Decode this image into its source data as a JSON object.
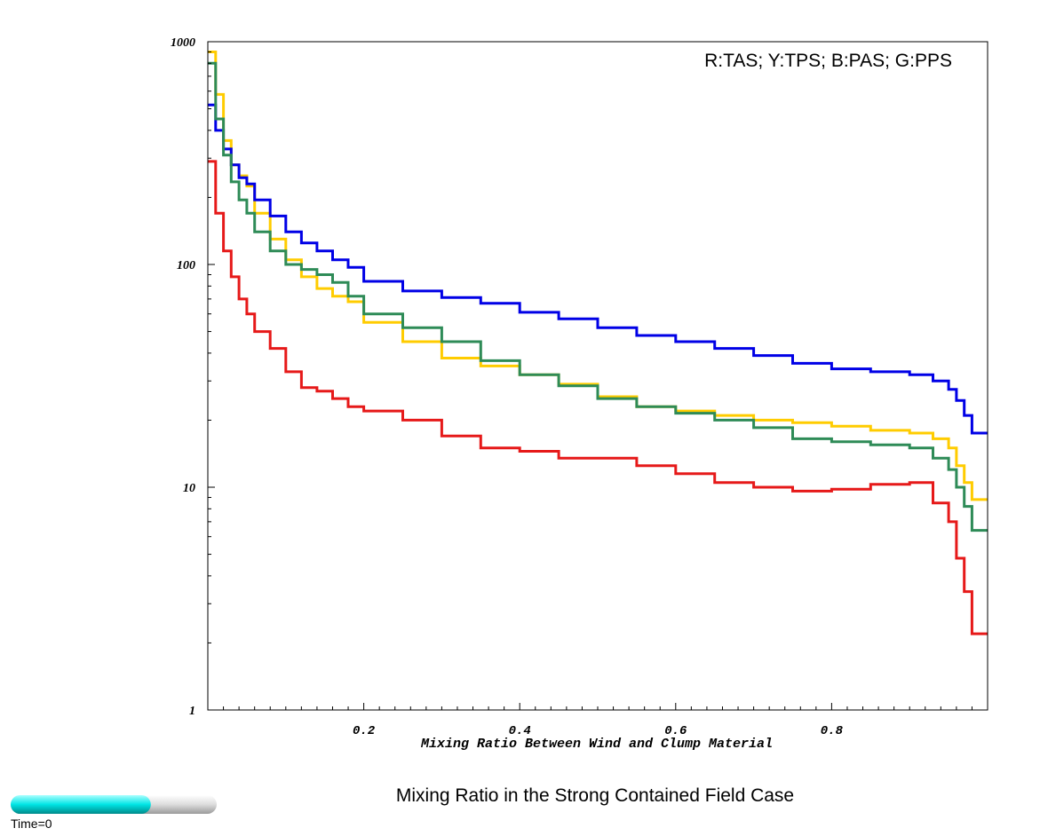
{
  "chart_data": {
    "type": "line",
    "step": true,
    "title": "Mixing Ratio in the Strong Contained Field Case",
    "xlabel": "Mixing Ratio Between Wind and Clump Material",
    "ylabel": "",
    "xlim": [
      0,
      1
    ],
    "ylim": [
      1,
      1000
    ],
    "yscale": "log",
    "xticks": [
      0.2,
      0.4,
      0.6,
      0.8
    ],
    "xtick_labels": [
      "0.2",
      "0.4",
      "0.6",
      "0.8"
    ],
    "yticks": [
      1,
      10,
      100,
      1000
    ],
    "ytick_labels": [
      "1",
      "10",
      "100",
      "1000"
    ],
    "grid": false,
    "legend": {
      "text": "R:TAS; Y:TPS; B:PAS; G:PPS",
      "position": "top-right"
    },
    "x": [
      0.01,
      0.02,
      0.03,
      0.04,
      0.05,
      0.06,
      0.08,
      0.1,
      0.12,
      0.14,
      0.16,
      0.18,
      0.2,
      0.25,
      0.3,
      0.35,
      0.4,
      0.45,
      0.5,
      0.55,
      0.6,
      0.65,
      0.7,
      0.75,
      0.8,
      0.85,
      0.9,
      0.93,
      0.95,
      0.96,
      0.97,
      0.98,
      0.99
    ],
    "series": [
      {
        "name": "R:TAS",
        "color": "#e61919",
        "values": [
          290,
          170,
          115,
          88,
          70,
          60,
          50,
          42,
          33,
          28,
          27,
          25,
          23,
          22,
          20,
          17,
          15,
          14.5,
          13.5,
          13.5,
          12.5,
          11.5,
          10.5,
          10,
          9.6,
          9.8,
          10.3,
          10.5,
          8.5,
          7,
          4.8,
          3.4,
          2.2
        ]
      },
      {
        "name": "Y:TPS",
        "color": "#ffcc00",
        "values": [
          900,
          580,
          360,
          280,
          250,
          225,
          170,
          130,
          105,
          88,
          78,
          72,
          68,
          55,
          45,
          38,
          35,
          32,
          29,
          25.5,
          23,
          22,
          21,
          20,
          19.5,
          18.8,
          18,
          17.5,
          16.5,
          15,
          12.5,
          10.5,
          8.8
        ]
      },
      {
        "name": "B:PAS",
        "color": "#0000e6",
        "values": [
          520,
          400,
          330,
          280,
          245,
          230,
          195,
          165,
          140,
          125,
          115,
          105,
          97,
          84,
          76,
          71,
          67,
          61,
          57,
          52,
          48,
          45,
          42,
          39,
          36,
          34,
          33,
          32,
          30,
          27.5,
          24.5,
          21,
          17.5
        ]
      },
      {
        "name": "G:PPS",
        "color": "#2e8b57",
        "values": [
          800,
          450,
          310,
          235,
          195,
          170,
          140,
          115,
          100,
          95,
          90,
          83,
          72,
          60,
          52,
          45,
          37,
          32,
          28.5,
          25,
          23,
          21.5,
          20,
          18.5,
          16.5,
          16,
          15.5,
          15,
          13.5,
          12,
          10,
          8.2,
          6.4
        ]
      }
    ]
  },
  "time_slider": {
    "label": "Time=0",
    "fill_fraction": 0.68,
    "fill_color": "#00e5e5"
  }
}
